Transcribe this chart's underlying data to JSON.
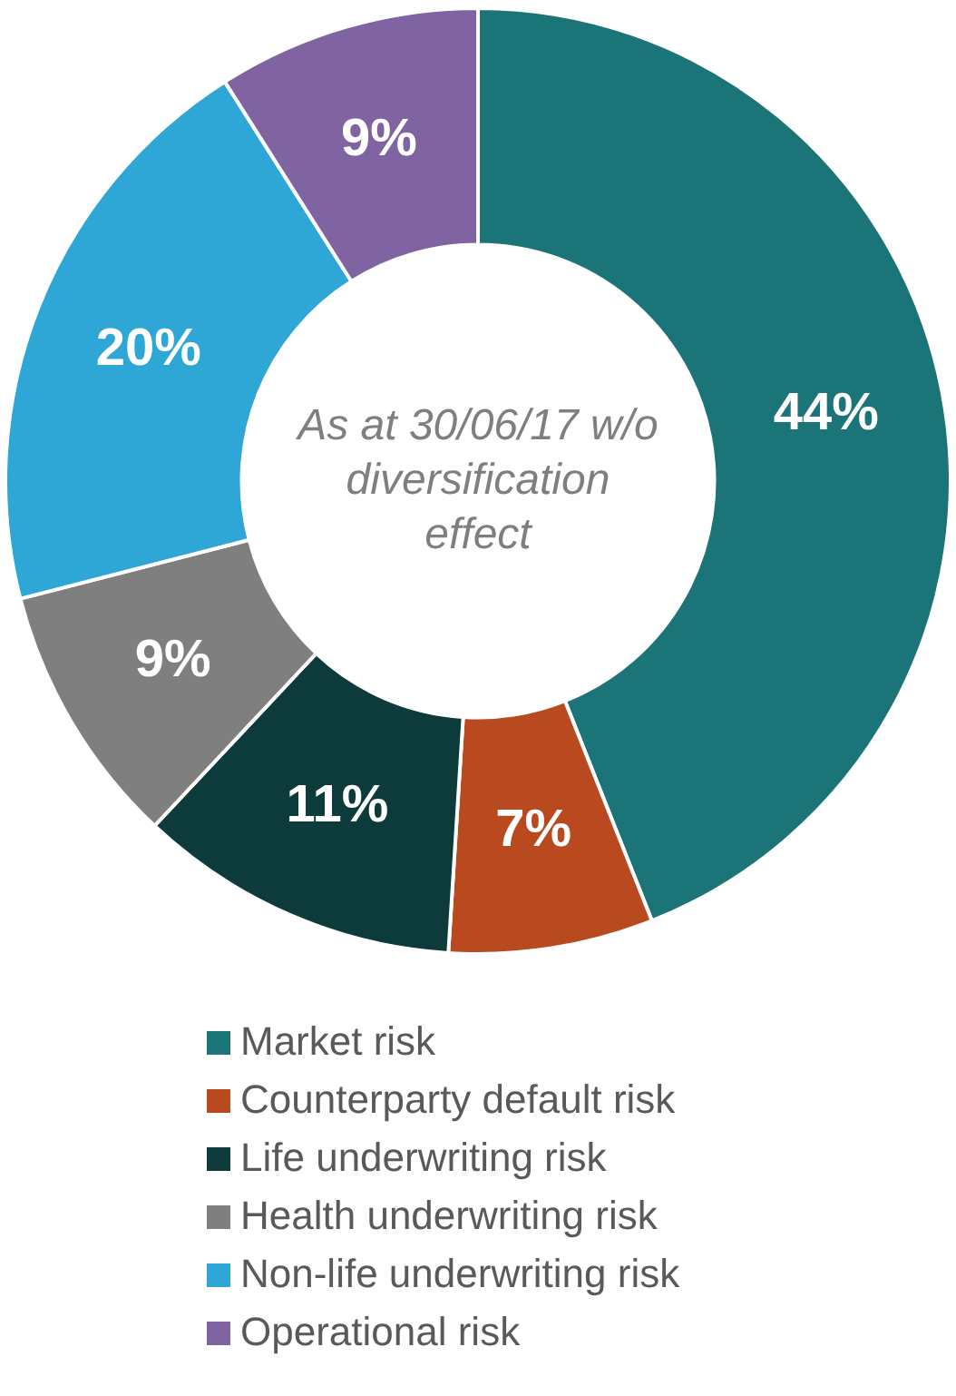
{
  "chart_data": {
    "type": "donut",
    "categories": [
      "Market risk",
      "Counterparty default risk",
      "Life underwriting risk",
      "Health underwriting risk",
      "Non-life underwriting risk",
      "Operational risk"
    ],
    "values": [
      44,
      7,
      11,
      9,
      20,
      9
    ],
    "colors": [
      "#1a7478",
      "#b94a1f",
      "#0d3a3b",
      "#7f7f7f",
      "#2ea6d6",
      "#8064a2"
    ],
    "value_labels": [
      "44%",
      "7%",
      "11%",
      "9%",
      "20%",
      "9%"
    ],
    "annotations": [
      "As at 30/06/17 w/o diversification effect"
    ],
    "legend": "bottom"
  }
}
